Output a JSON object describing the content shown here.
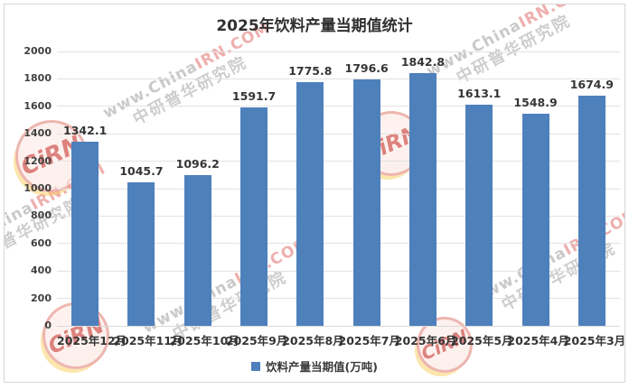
{
  "title": "2025年饮料产量当期值统计",
  "legend": {
    "label": "饮料产量当期值(万吨)",
    "swatch_color": "#4e80bc"
  },
  "watermark": {
    "site_prefix": "www.China",
    "site_suffix": "IRN.COM",
    "org": "中研普华研究院",
    "badge": "CiRN"
  },
  "chart_data": {
    "type": "bar",
    "title": "2025年饮料产量当期值统计",
    "categories": [
      "2025年12月",
      "2025年11月",
      "2025年10月",
      "2025年9月",
      "2025年8月",
      "2025年7月",
      "2025年6月",
      "2025年5月",
      "2025年4月",
      "2025年3月"
    ],
    "values": [
      1342.1,
      1045.7,
      1096.2,
      1591.7,
      1775.8,
      1796.6,
      1842.8,
      1613.1,
      1548.9,
      1674.9
    ],
    "series_name": "饮料产量当期值(万吨)",
    "xlabel": "",
    "ylabel": "",
    "ylim": [
      0,
      2000
    ],
    "yticks": [
      0,
      200,
      400,
      600,
      800,
      1000,
      1200,
      1400,
      1600,
      1800,
      2000
    ],
    "bar_color": "#4e80bc",
    "grid": true,
    "legend_position": "bottom",
    "value_label_decimals": 1
  }
}
